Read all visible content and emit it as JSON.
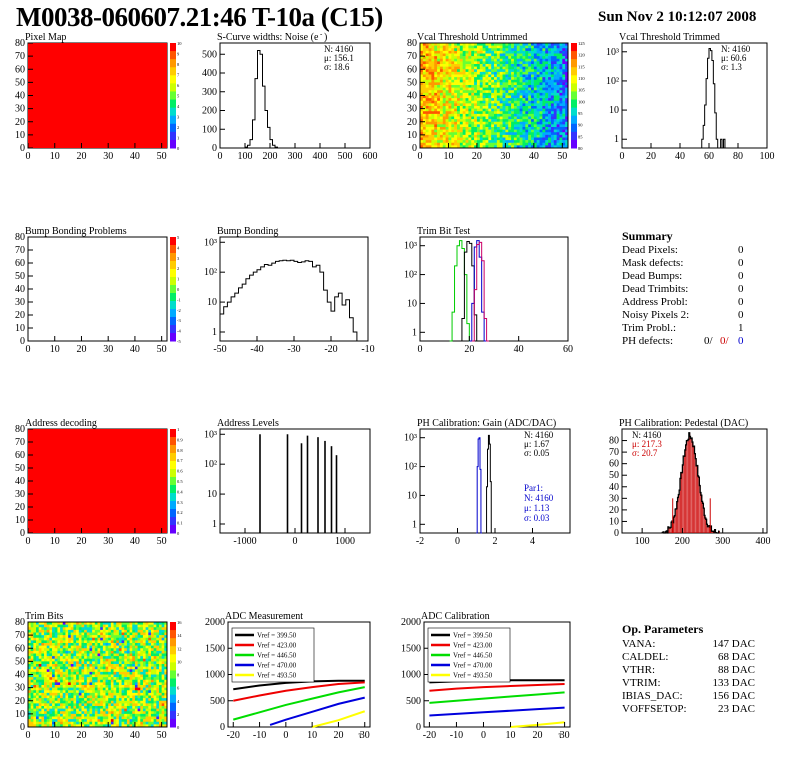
{
  "header": {
    "title": "M0038-060607.21:46 T-10a (C15)",
    "date": "Sun Nov  2 10:12:07 2008"
  },
  "colors": {
    "map_red": "#ff0000",
    "hist_line": "#000000",
    "red": "#cc0000",
    "green": "#00cc00",
    "blue": "#0000cc",
    "yellow": "#e8e800",
    "magenta": "#cc0066"
  },
  "chart_data": [
    {
      "id": "pixel_map",
      "type": "heatmap",
      "title": "Pixel Map",
      "xticks": [
        "0",
        "10",
        "20",
        "30",
        "40",
        "50"
      ],
      "yticks": [
        "0",
        "10",
        "20",
        "30",
        "40",
        "50",
        "60",
        "70",
        "80"
      ],
      "xlim": [
        0,
        52
      ],
      "ylim": [
        0,
        80
      ],
      "fill": "uniform-red",
      "palette_ticks": [
        "10",
        "9",
        "8",
        "7",
        "6",
        "5",
        "4",
        "3",
        "2",
        "1",
        "0"
      ]
    },
    {
      "id": "scurve",
      "type": "histogram",
      "title": "S-Curve widths: Noise (e",
      "title_sup": "-",
      "title_close": ")",
      "xlim": [
        0,
        600
      ],
      "ylim": [
        0,
        560
      ],
      "xticks": [
        "0",
        "100",
        "200",
        "300",
        "400",
        "500",
        "600"
      ],
      "yticks": [
        "0",
        "100",
        "200",
        "300",
        "400",
        "500"
      ],
      "stats": [
        "N: 4160",
        "μ: 156.1",
        "σ: 18.6"
      ],
      "bins": [
        [
          90,
          0
        ],
        [
          100,
          5
        ],
        [
          110,
          15
        ],
        [
          120,
          45
        ],
        [
          130,
          150
        ],
        [
          140,
          370
        ],
        [
          150,
          520
        ],
        [
          160,
          500
        ],
        [
          170,
          330
        ],
        [
          180,
          200
        ],
        [
          190,
          110
        ],
        [
          200,
          45
        ],
        [
          210,
          15
        ],
        [
          220,
          5
        ],
        [
          230,
          0
        ]
      ]
    },
    {
      "id": "vcal_untrimmed",
      "type": "heatmap",
      "title": "Vcal Threshold Untrimmed",
      "xticks": [
        "0",
        "10",
        "20",
        "30",
        "40",
        "50"
      ],
      "yticks": [
        "0",
        "10",
        "20",
        "30",
        "40",
        "50",
        "60",
        "70",
        "80"
      ],
      "xlim": [
        0,
        52
      ],
      "ylim": [
        0,
        80
      ],
      "fill": "gradient-green-to-blue",
      "palette_ticks": [
        "125",
        "120",
        "115",
        "110",
        "105",
        "100",
        "95",
        "90",
        "85",
        "80"
      ]
    },
    {
      "id": "vcal_trimmed",
      "type": "histogram",
      "title": "Vcal Threshold Trimmed",
      "log": true,
      "xlim": [
        0,
        100
      ],
      "ylim": [
        0.5,
        2000
      ],
      "xticks": [
        "0",
        "20",
        "40",
        "60",
        "80",
        "100"
      ],
      "yticks": [
        "1",
        "10",
        "10²",
        "10³"
      ],
      "stats": [
        "N: 4160",
        "μ: 60.6",
        "σ:  1.3"
      ],
      "bins": [
        [
          54,
          0
        ],
        [
          55,
          1
        ],
        [
          56,
          3
        ],
        [
          57,
          15
        ],
        [
          58,
          120
        ],
        [
          59,
          600
        ],
        [
          60,
          1300
        ],
        [
          61,
          1100
        ],
        [
          62,
          500
        ],
        [
          63,
          80
        ],
        [
          64,
          8
        ],
        [
          65,
          1
        ],
        [
          66,
          0
        ],
        [
          68,
          1
        ],
        [
          69,
          0
        ],
        [
          70,
          1
        ],
        [
          71,
          0
        ]
      ]
    },
    {
      "id": "bump_problems",
      "type": "heatmap",
      "title": "Bump Bonding Problems",
      "xticks": [
        "0",
        "10",
        "20",
        "30",
        "40",
        "50"
      ],
      "yticks": [
        "0",
        "10",
        "20",
        "30",
        "40",
        "50",
        "60",
        "70",
        "80"
      ],
      "xlim": [
        0,
        52
      ],
      "ylim": [
        0,
        80
      ],
      "fill": "empty",
      "palette_ticks": [
        "5",
        "4",
        "3",
        "2",
        "1",
        "0",
        "-1",
        "-2",
        "-3",
        "-4",
        "-5"
      ]
    },
    {
      "id": "bump_bonding",
      "type": "histogram",
      "title": "Bump Bonding",
      "log": true,
      "xlim": [
        -50,
        -10
      ],
      "ylim": [
        0.5,
        1500
      ],
      "xticks": [
        "-50",
        "-40",
        "-30",
        "-20",
        "-10"
      ],
      "yticks": [
        "1",
        "10",
        "10²",
        "10³"
      ],
      "bins": [
        [
          -50,
          4
        ],
        [
          -49,
          7
        ],
        [
          -48,
          10
        ],
        [
          -47,
          15
        ],
        [
          -46,
          20
        ],
        [
          -45,
          30
        ],
        [
          -44,
          40
        ],
        [
          -43,
          60
        ],
        [
          -42,
          80
        ],
        [
          -41,
          100
        ],
        [
          -40,
          120
        ],
        [
          -39,
          150
        ],
        [
          -38,
          180
        ],
        [
          -37,
          170
        ],
        [
          -36,
          200
        ],
        [
          -35,
          230
        ],
        [
          -34,
          240
        ],
        [
          -33,
          250
        ],
        [
          -32,
          240
        ],
        [
          -31,
          250
        ],
        [
          -30,
          230
        ],
        [
          -29,
          210
        ],
        [
          -28,
          220
        ],
        [
          -27,
          240
        ],
        [
          -26,
          230
        ],
        [
          -25,
          150
        ],
        [
          -24,
          170
        ],
        [
          -23,
          100
        ],
        [
          -22,
          25
        ],
        [
          -21,
          10
        ],
        [
          -20,
          5
        ],
        [
          -19,
          15
        ],
        [
          -18,
          20
        ],
        [
          -17,
          8
        ],
        [
          -16,
          12
        ],
        [
          -15,
          3
        ],
        [
          -14,
          1
        ],
        [
          -13,
          0
        ]
      ]
    },
    {
      "id": "trim_bit",
      "type": "histogram",
      "title": "Trim Bit Test",
      "log": true,
      "xlim": [
        0,
        60
      ],
      "ylim": [
        0.5,
        2000
      ],
      "xticks": [
        "0",
        "20",
        "40",
        "60"
      ],
      "yticks": [
        "1",
        "10",
        "10²",
        "10³"
      ],
      "series": [
        {
          "color": "#00cc00",
          "bins": [
            [
              12,
              0
            ],
            [
              13,
              5
            ],
            [
              14,
              200
            ],
            [
              15,
              1000
            ],
            [
              16,
              1500
            ],
            [
              17,
              800
            ],
            [
              18,
              100
            ],
            [
              19,
              2
            ],
            [
              20,
              0
            ]
          ]
        },
        {
          "color": "#000000",
          "bins": [
            [
              16,
              0
            ],
            [
              17,
              3
            ],
            [
              18,
              600
            ],
            [
              19,
              1400
            ],
            [
              20,
              1200
            ],
            [
              21,
              200
            ],
            [
              22,
              4
            ],
            [
              23,
              0
            ]
          ]
        },
        {
          "color": "#0000cc",
          "bins": [
            [
              20,
              0
            ],
            [
              21,
              10
            ],
            [
              22,
              900
            ],
            [
              23,
              1500
            ],
            [
              24,
              400
            ],
            [
              25,
              5
            ],
            [
              26,
              0
            ]
          ]
        },
        {
          "color": "#cc0066",
          "bins": [
            [
              21,
              0
            ],
            [
              22,
              30
            ],
            [
              23,
              1100
            ],
            [
              24,
              1300
            ],
            [
              25,
              300
            ],
            [
              26,
              3
            ],
            [
              27,
              0
            ]
          ]
        }
      ]
    },
    {
      "id": "address_decoding",
      "type": "heatmap",
      "title": "Address decoding",
      "xticks": [
        "0",
        "10",
        "20",
        "30",
        "40",
        "50"
      ],
      "yticks": [
        "0",
        "10",
        "20",
        "30",
        "40",
        "50",
        "60",
        "70",
        "80"
      ],
      "xlim": [
        0,
        52
      ],
      "ylim": [
        0,
        80
      ],
      "fill": "uniform-red",
      "palette_ticks": [
        "1",
        "0.9",
        "0.8",
        "0.7",
        "0.6",
        "0.5",
        "0.4",
        "0.3",
        "0.2",
        "0.1",
        "0"
      ]
    },
    {
      "id": "address_levels",
      "type": "histogram",
      "title": "Address Levels",
      "log": true,
      "xlim": [
        -1500,
        1500
      ],
      "ylim": [
        0.5,
        1500
      ],
      "xticks": [
        "-1000",
        "0",
        "1000"
      ],
      "yticks": [
        "1",
        "10",
        "10²",
        "10³"
      ],
      "peaks": [
        [
          -700,
          1000
        ],
        [
          -150,
          1000
        ],
        [
          130,
          500
        ],
        [
          250,
          900
        ],
        [
          460,
          800
        ],
        [
          600,
          600
        ],
        [
          730,
          400
        ],
        [
          830,
          200
        ]
      ]
    },
    {
      "id": "ph_gain",
      "type": "histogram",
      "title": "PH Calibration: Gain (ADC/DAC)",
      "log": true,
      "xlim": [
        -2,
        6
      ],
      "ylim": [
        0.5,
        2000
      ],
      "xticks": [
        "-2",
        "0",
        "2",
        "4"
      ],
      "yticks": [
        "1",
        "10",
        "10²",
        "10³"
      ],
      "stats": [
        "N: 4160",
        "μ: 1.67",
        "σ: 0.05"
      ],
      "stats_blue": [
        "Par1:",
        "N: 4160",
        "μ: 1.13",
        "σ: 0.03"
      ],
      "series": [
        {
          "color": "#000000",
          "bins": [
            [
              1.5,
              0
            ],
            [
              1.55,
              20
            ],
            [
              1.6,
              400
            ],
            [
              1.65,
              1200
            ],
            [
              1.7,
              600
            ],
            [
              1.75,
              30
            ],
            [
              1.8,
              0
            ]
          ]
        },
        {
          "color": "#0000cc",
          "bins": [
            [
              1.0,
              0
            ],
            [
              1.05,
              100
            ],
            [
              1.1,
              900
            ],
            [
              1.15,
              1000
            ],
            [
              1.2,
              80
            ],
            [
              1.25,
              0
            ]
          ]
        }
      ]
    },
    {
      "id": "ph_pedestal",
      "type": "histogram",
      "title": "PH Calibration: Pedestal (DAC)",
      "xlim": [
        50,
        410
      ],
      "ylim": [
        0,
        90
      ],
      "xticks": [
        "100",
        "200",
        "300",
        "400"
      ],
      "yticks": [
        "0",
        "10",
        "20",
        "30",
        "40",
        "50",
        "60",
        "70",
        "80"
      ],
      "stats": [
        "N: 4160"
      ],
      "stats_red": [
        "μ: 217.3",
        "σ: 20.7"
      ],
      "mean": 217.3,
      "sigma": 20.7,
      "peak": 84
    },
    {
      "id": "trim_bits",
      "type": "heatmap",
      "title": "Trim Bits",
      "xticks": [
        "0",
        "10",
        "20",
        "30",
        "40",
        "50"
      ],
      "yticks": [
        "0",
        "10",
        "20",
        "30",
        "40",
        "50",
        "60",
        "70",
        "80"
      ],
      "xlim": [
        0,
        52
      ],
      "ylim": [
        0,
        80
      ],
      "fill": "random-green",
      "palette_ticks": [
        "16",
        "14",
        "12",
        "10",
        "8",
        "6",
        "4",
        "2",
        "0"
      ]
    },
    {
      "id": "adc_measurement",
      "type": "line",
      "title": "ADC Measurement",
      "xlim": [
        -22,
        32
      ],
      "ylim": [
        0,
        2000
      ],
      "xticks": [
        "-20",
        "-10",
        "0",
        "10",
        "20",
        "30"
      ],
      "x_unit": "τ",
      "yticks": [
        "0",
        "500",
        "1000",
        "1500",
        "2000"
      ],
      "series": [
        {
          "name": "Vref = 399.50",
          "color": "#000000",
          "x": [
            -20,
            -10,
            0,
            10,
            20,
            30
          ],
          "y": [
            720,
            790,
            840,
            870,
            880,
            880
          ]
        },
        {
          "name": "Vref = 423.00",
          "color": "#ee0000",
          "x": [
            -20,
            -10,
            0,
            10,
            20,
            30
          ],
          "y": [
            500,
            600,
            690,
            760,
            820,
            850
          ]
        },
        {
          "name": "Vref = 446.50",
          "color": "#00dd00",
          "x": [
            -20,
            -10,
            0,
            10,
            20,
            30
          ],
          "y": [
            140,
            280,
            420,
            540,
            660,
            760
          ]
        },
        {
          "name": "Vref = 470.00",
          "color": "#0000dd",
          "x": [
            -6,
            0,
            10,
            20,
            30
          ],
          "y": [
            40,
            140,
            290,
            440,
            560
          ]
        },
        {
          "name": "Vref = 493.50",
          "color": "#ffff00",
          "x": [
            10,
            20,
            30
          ],
          "y": [
            0,
            130,
            300
          ]
        }
      ]
    },
    {
      "id": "adc_calibration",
      "type": "line",
      "title": "ADC Calibration",
      "xlim": [
        -22,
        32
      ],
      "ylim": [
        0,
        2000
      ],
      "xticks": [
        "-20",
        "-10",
        "0",
        "10",
        "20",
        "30"
      ],
      "x_unit": "τ",
      "yticks": [
        "0",
        "500",
        "1000",
        "1500",
        "2000"
      ],
      "series": [
        {
          "name": "Vref = 399.50",
          "color": "#000000",
          "x": [
            -20,
            -10,
            0,
            10,
            20,
            30
          ],
          "y": [
            850,
            870,
            880,
            890,
            890,
            890
          ]
        },
        {
          "name": "Vref = 423.00",
          "color": "#ee0000",
          "x": [
            -20,
            -10,
            0,
            10,
            20,
            30
          ],
          "y": [
            690,
            730,
            760,
            780,
            800,
            820
          ]
        },
        {
          "name": "Vref = 446.50",
          "color": "#00dd00",
          "x": [
            -20,
            -10,
            0,
            10,
            20,
            30
          ],
          "y": [
            460,
            500,
            540,
            580,
            620,
            660
          ]
        },
        {
          "name": "Vref = 470.00",
          "color": "#0000dd",
          "x": [
            -20,
            -10,
            0,
            10,
            20,
            30
          ],
          "y": [
            220,
            250,
            280,
            310,
            340,
            370
          ]
        },
        {
          "name": "Vref = 493.50",
          "color": "#ffff00",
          "x": [
            10,
            20,
            30
          ],
          "y": [
            0,
            40,
            90
          ]
        }
      ]
    }
  ],
  "summary": {
    "title": "Summary",
    "rows": [
      {
        "label": "Dead Pixels:",
        "value": "0"
      },
      {
        "label": "Mask defects:",
        "value": "0"
      },
      {
        "label": "Dead Bumps:",
        "value": "0"
      },
      {
        "label": "Dead Trimbits:",
        "value": "0"
      },
      {
        "label": "Address Probl:",
        "value": "0"
      },
      {
        "label": "Noisy Pixels 2:",
        "value": "0"
      },
      {
        "label": "Trim Probl.:",
        "value": "1"
      }
    ],
    "ph_label": "PH defects:",
    "ph_values": [
      "0/",
      "0/",
      "0"
    ]
  },
  "op_params": {
    "title": "Op. Parameters",
    "rows": [
      {
        "label": "VANA:",
        "value": "147 DAC"
      },
      {
        "label": "CALDEL:",
        "value": "68 DAC"
      },
      {
        "label": "VTHR:",
        "value": "88 DAC"
      },
      {
        "label": "VTRIM:",
        "value": "133 DAC"
      },
      {
        "label": "IBIAS_DAC:",
        "value": "156 DAC"
      },
      {
        "label": "VOFFSETOP:",
        "value": "23 DAC"
      }
    ]
  }
}
